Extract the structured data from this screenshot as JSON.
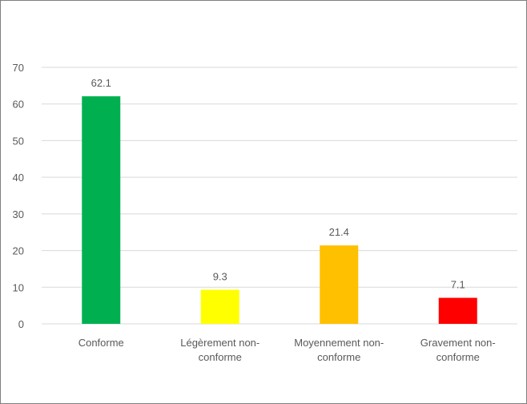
{
  "chart_data": {
    "type": "bar",
    "title": "",
    "xlabel": "",
    "ylabel": "",
    "ylim": [
      0,
      70
    ],
    "y_ticks": [
      0,
      10,
      20,
      30,
      40,
      50,
      60,
      70
    ],
    "y_tick_labels": [
      "0",
      "10",
      "20",
      "30",
      "40",
      "50",
      "60",
      "70"
    ],
    "grid": true,
    "legend": "none",
    "categories": [
      [
        "Conforme"
      ],
      [
        "Légèrement non-",
        "conforme"
      ],
      [
        "Moyennement non-",
        "conforme"
      ],
      [
        "Gravement non-",
        "conforme"
      ]
    ],
    "values": [
      62.1,
      9.3,
      21.4,
      7.1
    ],
    "data_labels": [
      "62.1",
      "9.3",
      "21.4",
      "7.1"
    ],
    "colors": [
      "#00b050",
      "#ffff00",
      "#ffc000",
      "#ff0000"
    ],
    "gridline_color": "#d9d9d9",
    "axis_color": "#d9d9d9",
    "text_color": "#595959"
  }
}
